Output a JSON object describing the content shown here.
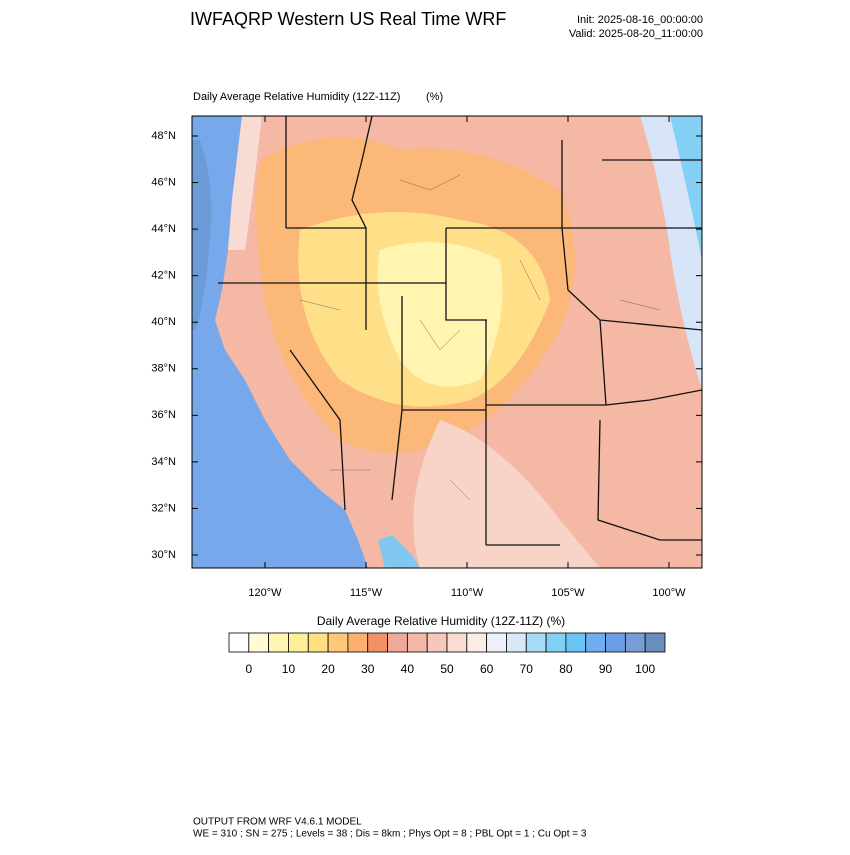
{
  "header": {
    "title": "IWFAQRP Western US Real Time WRF",
    "init": "Init: 2025-08-16_00:00:00",
    "valid": "Valid: 2025-08-20_11:00:00"
  },
  "map": {
    "title": "Daily Average Relative Humidity (12Z-11Z)",
    "units": "(%)",
    "lat_ticks": [
      {
        "value": 48,
        "label": "48°N"
      },
      {
        "value": 46,
        "label": "46°N"
      },
      {
        "value": 44,
        "label": "44°N"
      },
      {
        "value": 42,
        "label": "42°N"
      },
      {
        "value": 40,
        "label": "40°N"
      },
      {
        "value": 38,
        "label": "38°N"
      },
      {
        "value": 36,
        "label": "36°N"
      },
      {
        "value": 34,
        "label": "34°N"
      },
      {
        "value": 32,
        "label": "32°N"
      },
      {
        "value": 30,
        "label": "30°N"
      }
    ],
    "lon_ticks": [
      {
        "value": -120,
        "label": "120°W"
      },
      {
        "value": -115,
        "label": "115°W"
      },
      {
        "value": -110,
        "label": "110°W"
      },
      {
        "value": -105,
        "label": "105°W"
      },
      {
        "value": -100,
        "label": "100°W"
      }
    ]
  },
  "colorbar": {
    "title": "Daily Average Relative Humidity (12Z-11Z)  (%)",
    "ticks": [
      0,
      10,
      20,
      30,
      40,
      50,
      60,
      70,
      80,
      90,
      100
    ],
    "colors": [
      "#ffffff",
      "#fffcd4",
      "#fff6b4",
      "#ffee98",
      "#ffdf80",
      "#ffc878",
      "#fbb070",
      "#f49068",
      "#f0a898",
      "#f4b8a8",
      "#f6c8bc",
      "#f9dcd2",
      "#fbece8",
      "#eef0fc",
      "#d8e8f8",
      "#a8dcf4",
      "#84d0f4",
      "#6cc4f4",
      "#6eaef0",
      "#6c9ee8",
      "#7a9cd4",
      "#6a8ebc"
    ]
  },
  "footer": {
    "line1": "OUTPUT FROM WRF V4.6.1 MODEL",
    "line2": "WE = 310 ; SN = 275 ; Levels = 38 ; Dis = 8km ; Phys Opt = 8 ; PBL Opt = 1 ; Cu Opt = 3"
  }
}
